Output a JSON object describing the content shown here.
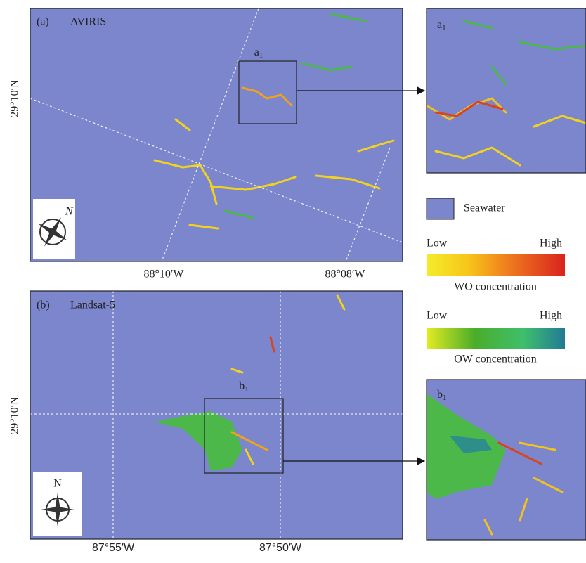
{
  "panel_a": {
    "label": "(a)",
    "sensor": "AVIRIS",
    "inset": {
      "letter": "a",
      "sub": "1"
    },
    "lat": "29°10′N",
    "lon": [
      "88°10′W",
      "88°08′W"
    ],
    "compass": "N"
  },
  "panel_b": {
    "label": "(b)",
    "sensor": "Landsat-5",
    "inset": {
      "letter": "b",
      "sub": "1"
    },
    "lat": "29°10′N",
    "lon": [
      "87°55′W",
      "87°50′W"
    ],
    "compass": "N"
  },
  "legend": {
    "seawater": "Seawater",
    "wo": {
      "low": "Low",
      "high": "High",
      "title": "WO concentration"
    },
    "ow": {
      "low": "Low",
      "high": "High",
      "title": "OW concentration"
    }
  }
}
